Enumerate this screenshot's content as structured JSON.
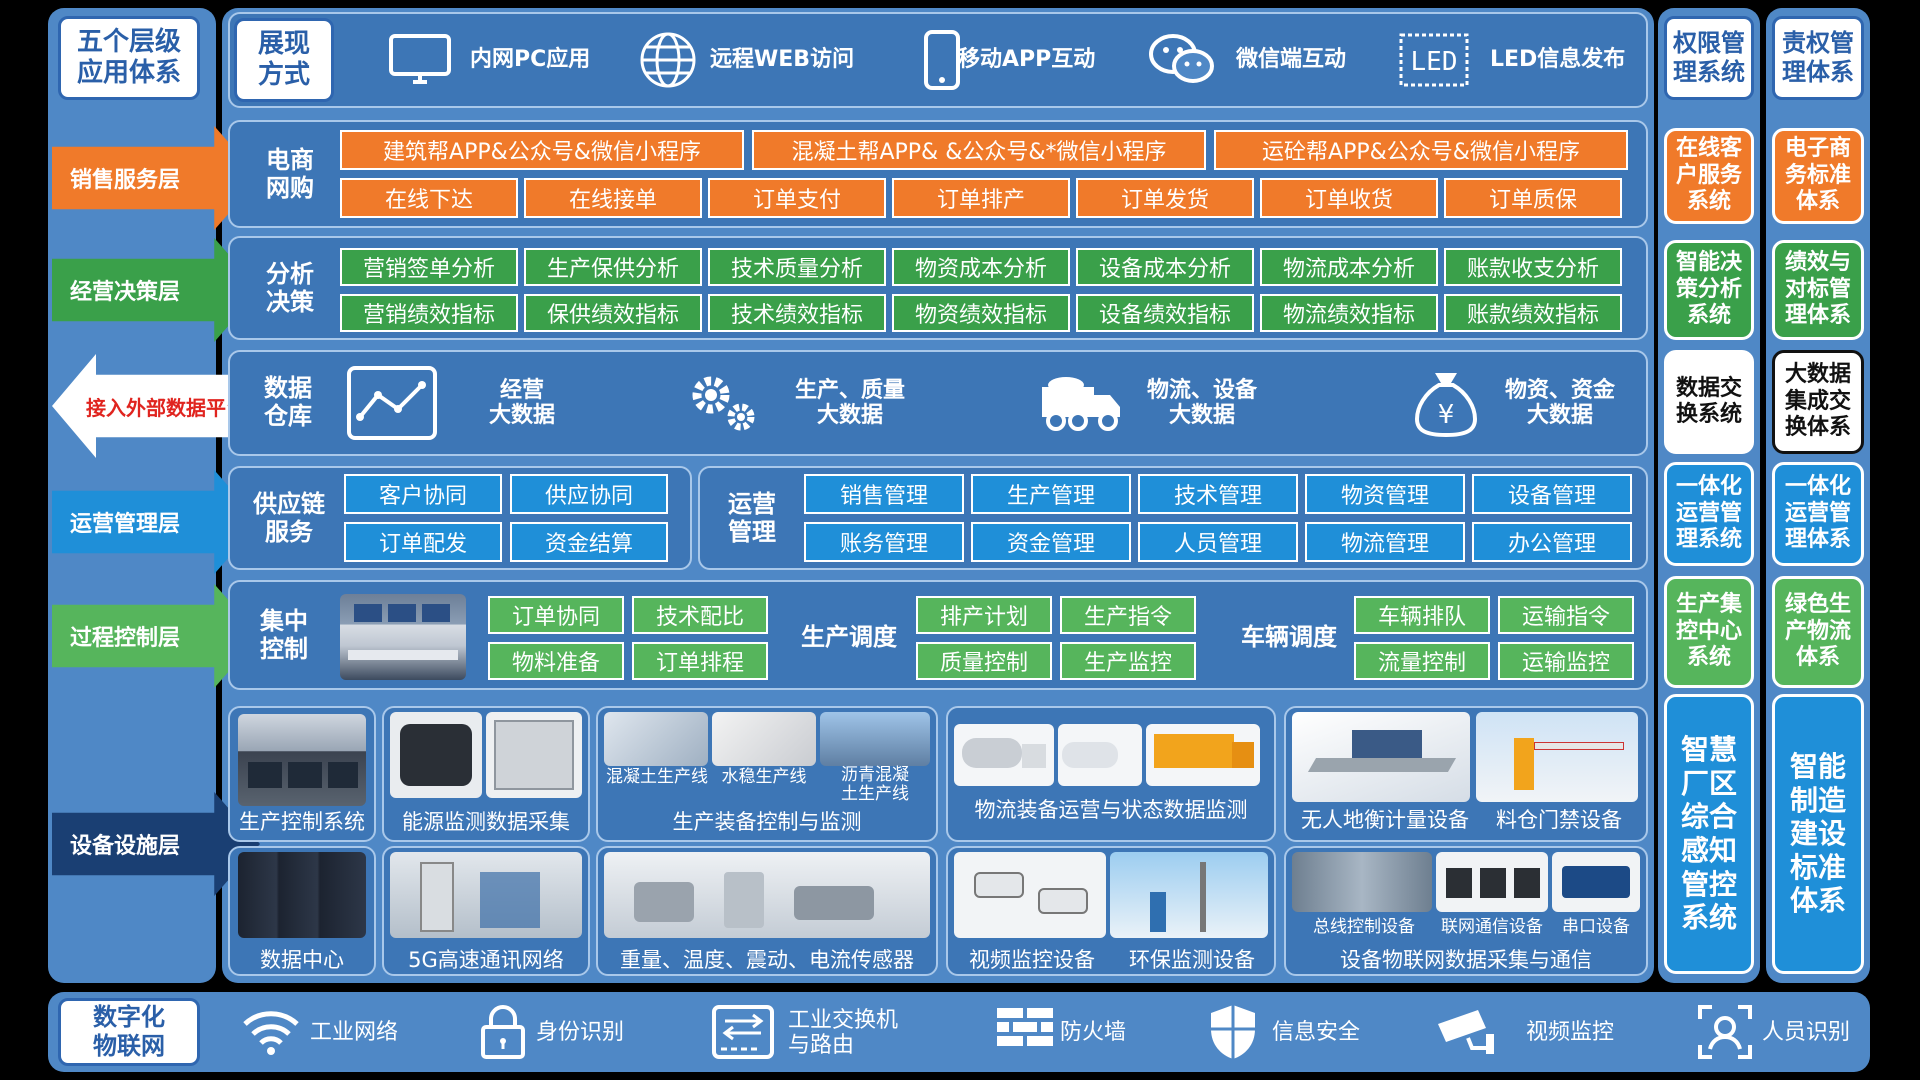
{
  "left_title": "五个层级\n应用体系",
  "display": {
    "title": "展现\n方式",
    "items": [
      {
        "label": "内网PC应用",
        "icon": "monitor-icon"
      },
      {
        "label": "远程WEB访问",
        "icon": "globe-icon"
      },
      {
        "label": "移动APP互动",
        "icon": "phone-icon"
      },
      {
        "label": "微信端互动",
        "icon": "wechat-icon"
      },
      {
        "label": "LED信息发布",
        "icon": "led-icon"
      }
    ]
  },
  "right1_title": "权限管\n理系统",
  "right2_title": "责权管\n理体系",
  "layers": {
    "sales": "销售服务层",
    "decision": "经营决策层",
    "external": "接入外部数据平台",
    "operation": "运营管理层",
    "process": "过程控制层",
    "equipment": "设备设施层"
  },
  "ecommerce": {
    "title": "电商\n网购",
    "apps": [
      "建筑帮APP&公众号&微信小程序",
      "混凝土帮APP& &公众号&*微信小程序",
      "运砼帮APP&公众号&微信小程序"
    ],
    "flow": [
      "在线下达",
      "在线接单",
      "订单支付",
      "订单排产",
      "订单发货",
      "订单收货",
      "订单质保"
    ]
  },
  "analysis": {
    "title": "分析\n决策",
    "row1": [
      "营销签单分析",
      "生产保供分析",
      "技术质量分析",
      "物资成本分析",
      "设备成本分析",
      "物流成本分析",
      "账款收支分析"
    ],
    "row2": [
      "营销绩效指标",
      "保供绩效指标",
      "技术绩效指标",
      "物资绩效指标",
      "设备绩效指标",
      "物流绩效指标",
      "账款绩效指标"
    ]
  },
  "warehouse": {
    "title": "数据\n仓库",
    "items": [
      {
        "label": "经营\n大数据",
        "icon": "chart-line-icon"
      },
      {
        "label": "生产、质量\n大数据",
        "icon": "gears-icon"
      },
      {
        "label": "物流、设备\n大数据",
        "icon": "truck-icon"
      },
      {
        "label": "物资、资金\n大数据",
        "icon": "money-bag-icon"
      }
    ]
  },
  "supply": {
    "title": "供应链\n服务",
    "items": [
      "客户协同",
      "供应协同",
      "订单配发",
      "资金结算"
    ]
  },
  "ops": {
    "title": "运营\n管理",
    "row1": [
      "销售管理",
      "生产管理",
      "技术管理",
      "物资管理",
      "设备管理"
    ],
    "row2": [
      "账务管理",
      "资金管理",
      "人员管理",
      "物流管理",
      "办公管理"
    ]
  },
  "control": {
    "title": "集中\n控制",
    "g1": [
      "订单协同",
      "技术配比",
      "物料准备",
      "订单排程"
    ],
    "prod_title": "生产调度",
    "g2": [
      "排产计划",
      "生产指令",
      "质量控制",
      "生产监控"
    ],
    "vehicle_title": "车辆调度",
    "g3": [
      "车辆排队",
      "运输指令",
      "流量控制",
      "运输监控"
    ]
  },
  "equipment": {
    "row1": {
      "prod_control": "生产控制系统",
      "energy": "能源监测数据采集",
      "line_concrete": "混凝土生产线",
      "line_stable": "水稳生产线",
      "line_asphalt": "沥青混凝\n土生产线",
      "prod_equip": "生产装备控制与监测",
      "logistics": "物流装备运营与状态数据监测",
      "weigh": "无人地衡计量设备",
      "gate": "料仓门禁设备"
    },
    "row2": {
      "datacenter": "数据中心",
      "network5g": "5G高速通讯网络",
      "sensors": "重量、温度、震动、电流传感器",
      "video": "视频监控设备",
      "env": "环保监测设备",
      "bus": "总线控制设备",
      "comm": "联网通信设备",
      "serial": "串口设备",
      "iot": "设备物联网数据采集与通信"
    }
  },
  "right1": [
    "在线客\n户服务\n系统",
    "智能决\n策分析\n系统",
    "数据交\n换系统",
    "一体化\n运营管\n理系统",
    "生产集\n控中心\n系统",
    "智慧\n厂区\n综合\n感知\n管控\n系统"
  ],
  "right2": [
    "电子商\n务标准\n体系",
    "绩效与\n对标管\n理体系",
    "大数据\n集成交\n换体系",
    "一体化\n运营管\n理体系",
    "绿色生\n产物流\n体系",
    "智能\n制造\n建设\n标准\n体系"
  ],
  "iot_bar": {
    "title": "数字化\n物联网",
    "items": [
      {
        "label": "工业网络",
        "icon": "wifi-icon"
      },
      {
        "label": "身份识别",
        "icon": "lock-icon"
      },
      {
        "label": "工业交换机\n与路由",
        "icon": "switch-icon"
      },
      {
        "label": "防火墙",
        "icon": "firewall-icon"
      },
      {
        "label": "信息安全",
        "icon": "shield-icon"
      },
      {
        "label": "视频监控",
        "icon": "camera-icon"
      },
      {
        "label": "人员识别",
        "icon": "face-id-icon"
      }
    ]
  },
  "colors": {
    "panel": "#4f88c6",
    "inner": "#3d76b6",
    "orange": "#f07a2a",
    "green": "#3aa04a",
    "blue": "#1f8fd8",
    "navy": "#1a3f73"
  }
}
